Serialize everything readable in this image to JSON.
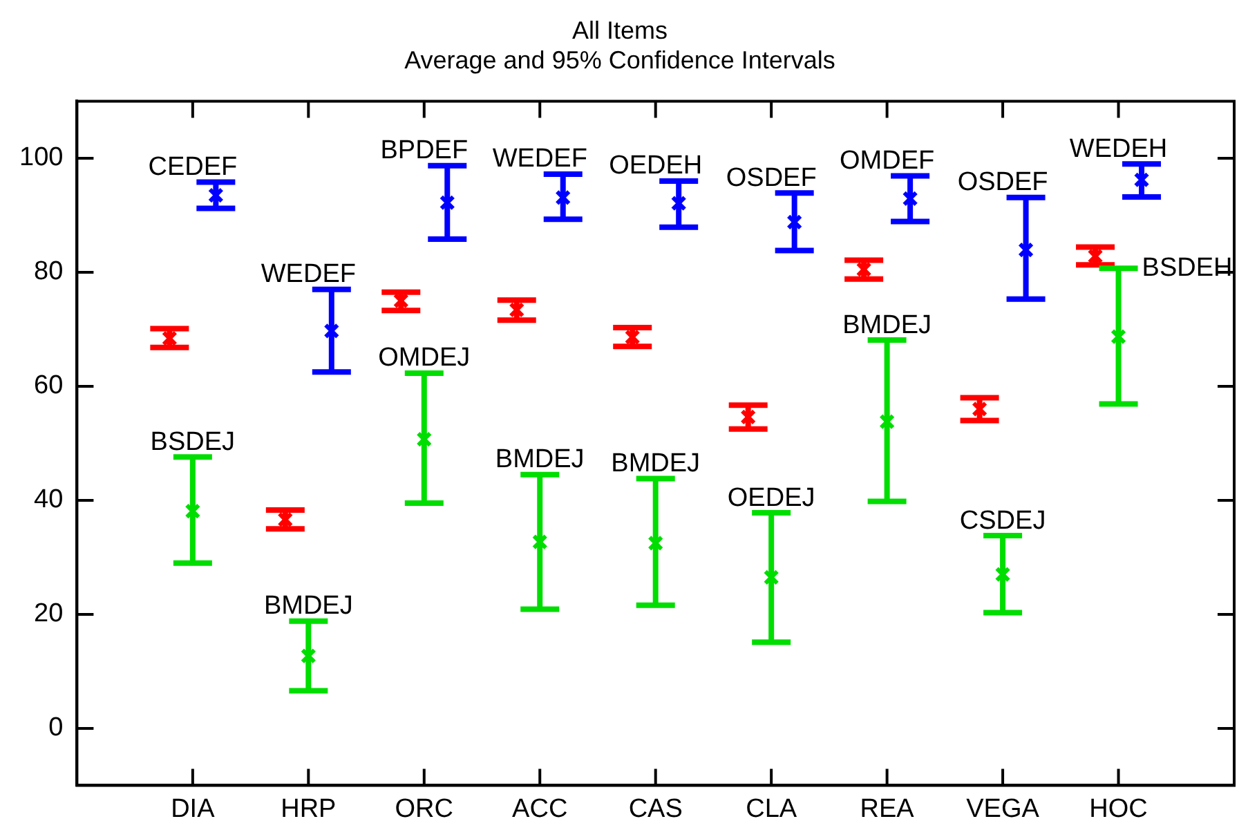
{
  "chart_data": {
    "type": "scatter",
    "title": "All Items",
    "subtitle": "Average and 95% Confidence Intervals",
    "categories": [
      "DIA",
      "HRP",
      "ORC",
      "ACC",
      "CAS",
      "CLA",
      "REA",
      "VEGA",
      "HOC"
    ],
    "ylim": [
      -10,
      110
    ],
    "yticks": [
      0,
      20,
      40,
      60,
      80,
      100
    ],
    "grid": false,
    "legend": false,
    "series": [
      {
        "color": "#ff0000",
        "marker": "cross",
        "values": [
          68.4,
          36.6,
          75.0,
          73.4,
          68.6,
          54.6,
          80.5,
          56.0,
          82.8
        ],
        "errors": [
          [
            66.8,
            70.1
          ],
          [
            35.0,
            38.3
          ],
          [
            73.3,
            76.5
          ],
          [
            71.6,
            75.1
          ],
          [
            67.0,
            70.3
          ],
          [
            52.5,
            56.7
          ],
          [
            78.8,
            82.1
          ],
          [
            54.0,
            58.0
          ],
          [
            81.3,
            84.4
          ]
        ]
      },
      {
        "color": "#00dd00",
        "marker": "cross",
        "values": [
          38.1,
          12.7,
          50.7,
          32.7,
          32.5,
          26.5,
          53.8,
          27.0,
          68.7
        ],
        "errors": [
          [
            29.0,
            47.6
          ],
          [
            6.6,
            18.8
          ],
          [
            39.5,
            62.3
          ],
          [
            20.9,
            44.5
          ],
          [
            21.6,
            43.8
          ],
          [
            15.1,
            37.8
          ],
          [
            39.8,
            68.1
          ],
          [
            20.3,
            33.8
          ],
          [
            56.9,
            80.7
          ]
        ]
      },
      {
        "color": "#0000ff",
        "marker": "cross",
        "values": [
          93.5,
          69.7,
          92.2,
          93.1,
          92.1,
          88.8,
          92.9,
          83.9,
          96.2
        ],
        "errors": [
          [
            91.2,
            95.8
          ],
          [
            62.5,
            77.0
          ],
          [
            85.8,
            98.7
          ],
          [
            89.3,
            97.2
          ],
          [
            87.9,
            96.0
          ],
          [
            83.8,
            93.9
          ],
          [
            88.9,
            96.9
          ],
          [
            75.3,
            93.1
          ],
          [
            93.2,
            99.0
          ]
        ]
      }
    ],
    "annotations": [
      {
        "text": "BSDEJ",
        "x": "DIA",
        "y": 47.6
      },
      {
        "text": "BMDEJ",
        "x": "HRP",
        "y": 18.8
      },
      {
        "text": "OMDEJ",
        "x": "ORC",
        "y": 62.3
      },
      {
        "text": "BMDEJ",
        "x": "ACC",
        "y": 44.5
      },
      {
        "text": "BMDEJ",
        "x": "CAS",
        "y": 43.8
      },
      {
        "text": "OEDEJ",
        "x": "CLA",
        "y": 37.8
      },
      {
        "text": "BMDEJ",
        "x": "REA",
        "y": 68.1
      },
      {
        "text": "CSDEJ",
        "x": "VEGA",
        "y": 33.8
      },
      {
        "text": "BSDEH",
        "x": "HOC",
        "y": 80.7
      },
      {
        "text": "CEDEF",
        "x": "DIA",
        "y": 95.8
      },
      {
        "text": "WEDEF",
        "x": "HRP",
        "y": 77.0
      },
      {
        "text": "BPDEF",
        "x": "ORC",
        "y": 98.7
      },
      {
        "text": "WEDEF",
        "x": "ACC",
        "y": 97.2
      },
      {
        "text": "OEDEH",
        "x": "CAS",
        "y": 96.0
      },
      {
        "text": "OSDEF",
        "x": "CLA",
        "y": 93.9
      },
      {
        "text": "OMDEF",
        "x": "REA",
        "y": 96.9
      },
      {
        "text": "OSDEF",
        "x": "VEGA",
        "y": 93.1
      },
      {
        "text": "WEDEH",
        "x": "HOC",
        "y": 99.0
      }
    ]
  }
}
